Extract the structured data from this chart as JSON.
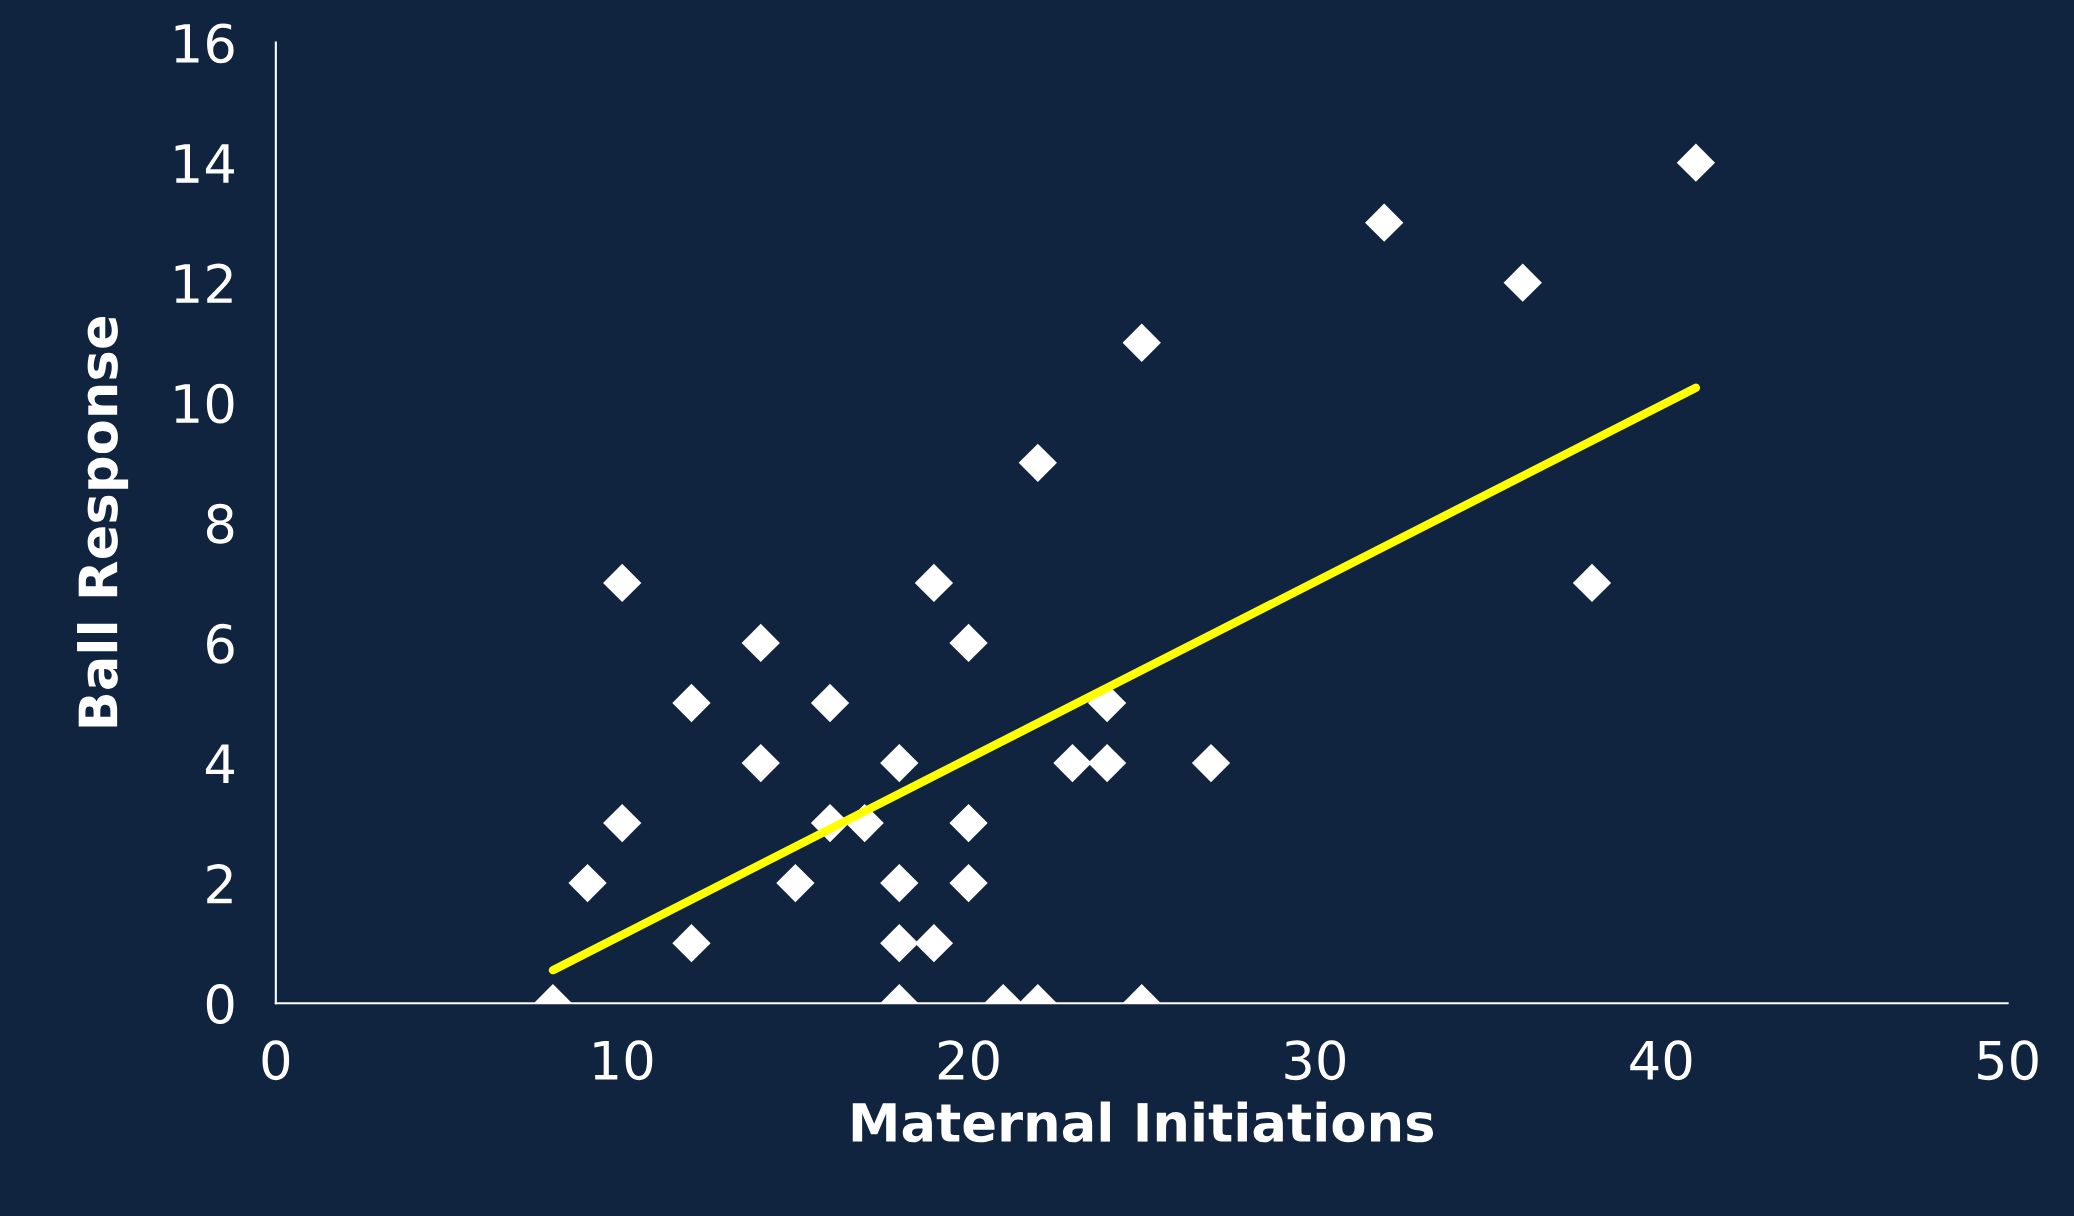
{
  "chart_data": {
    "type": "scatter",
    "xlabel": "Maternal Initiations",
    "ylabel": "Ball Response",
    "xlim": [
      0,
      50
    ],
    "ylim": [
      0,
      16
    ],
    "xticks": [
      0,
      10,
      20,
      30,
      40,
      50
    ],
    "yticks": [
      0,
      2,
      4,
      6,
      8,
      10,
      12,
      14,
      16
    ],
    "grid": false,
    "legend": false,
    "series": [
      {
        "color": "#ffffff",
        "marker": "diamond",
        "x": [
          8,
          9,
          10,
          10,
          12,
          12,
          14,
          14,
          15,
          16,
          16,
          17,
          18,
          18,
          18,
          18,
          19,
          19,
          20,
          20,
          20,
          21,
          22,
          22,
          23,
          24,
          24,
          25,
          25,
          27,
          32,
          36,
          38,
          41
        ],
        "values": [
          0,
          2,
          7,
          3,
          5,
          1,
          6,
          4,
          2,
          5,
          3,
          3,
          4,
          2,
          1,
          0,
          7,
          1,
          6,
          3,
          2,
          0,
          9,
          0,
          4,
          5,
          4,
          11,
          0,
          4,
          13,
          12,
          7,
          14
        ]
      },
      {
        "type": "line",
        "color": "#ffff00",
        "marker": "none",
        "line_style": "solid",
        "x": [
          8,
          41
        ],
        "values": [
          0.55,
          10.25
        ]
      }
    ]
  }
}
